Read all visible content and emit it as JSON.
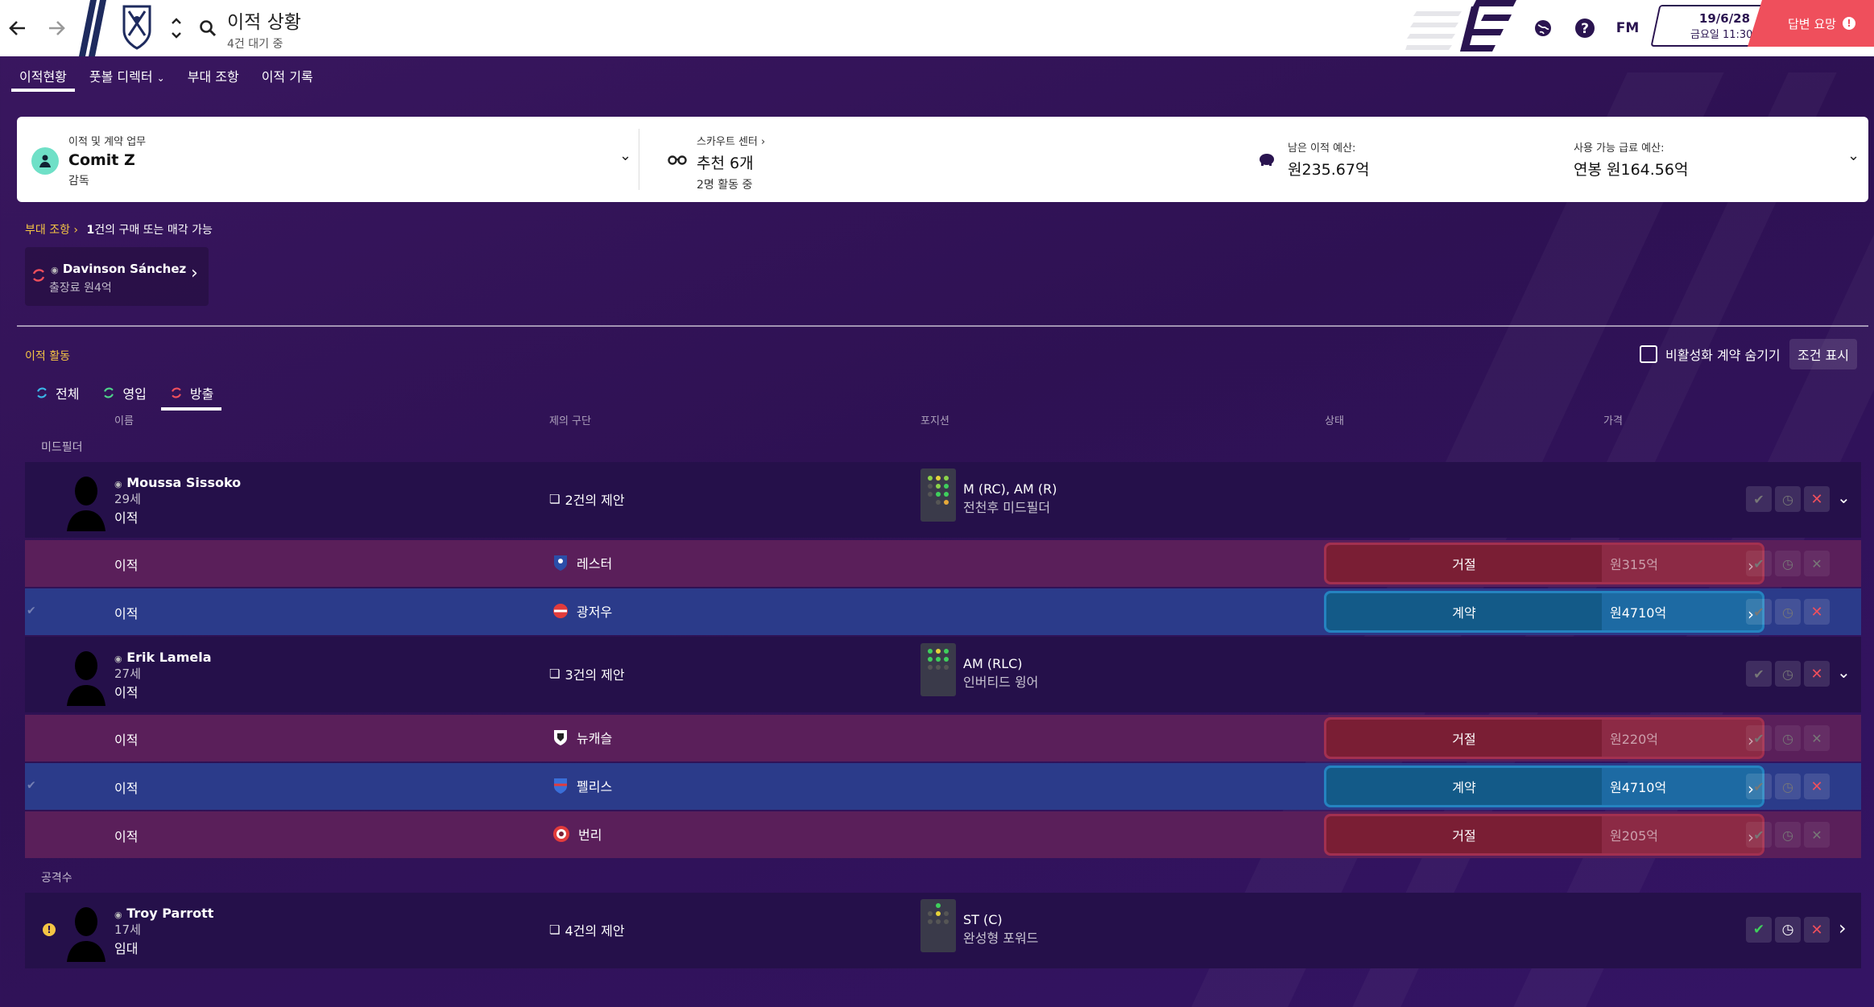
{
  "header": {
    "title": "이적 상황",
    "subtitle": "4건 대기 중",
    "fm_label": "FM",
    "date": "19/6/28",
    "day_time": "금요일 11:30",
    "reply_label": "답변 요망"
  },
  "subnav": {
    "tabs": [
      "이적현황",
      "풋볼 디렉터",
      "부대 조항",
      "이적 기록"
    ]
  },
  "info_card": {
    "transfer_label": "이적 및 계약 업무",
    "transfer_name": "Comit Z",
    "transfer_role": "감독",
    "scout_label": "스카우트 센터",
    "scout_main": "추천 6개",
    "scout_sub": "2명 활동 중",
    "budget_label": "남은 이적 예산:",
    "budget_value": "원235.67억",
    "wage_label": "사용 가능 급료 예산:",
    "wage_value": "연봉 원164.56억"
  },
  "squad_planner": {
    "link": "부대 조항",
    "summary_count": "1",
    "summary_text": "건의 구매 또는 매각 가능",
    "player_name": "Davinson Sánchez",
    "player_detail": "출장료 원4억"
  },
  "activity": {
    "title": "이적 활동",
    "hide_label": "비활성화 계약 숨기기",
    "conditions_label": "조건 표시",
    "filters": [
      "전체",
      "영입",
      "방출"
    ],
    "columns": [
      "이름",
      "제의 구단",
      "포지션",
      "상태",
      "가격"
    ],
    "groups": [
      "미드필더",
      "공격수"
    ]
  },
  "players": [
    {
      "name": "Moussa Sissoko",
      "age": "29세",
      "type": "이적",
      "offers": "2건의 제안",
      "position": "M (RC), AM (R)",
      "role": "전천후 미드필더",
      "deals": [
        {
          "type": "이적",
          "club": "레스터",
          "status": "거절",
          "price": "원315억",
          "style": "red"
        },
        {
          "type": "이적",
          "club": "광저우",
          "status": "계약",
          "price": "원4710억",
          "style": "blue"
        }
      ]
    },
    {
      "name": "Erik Lamela",
      "age": "27세",
      "type": "이적",
      "offers": "3건의 제안",
      "position": "AM (RLC)",
      "role": "인버티드 윙어",
      "deals": [
        {
          "type": "이적",
          "club": "뉴캐슬",
          "status": "거절",
          "price": "원220억",
          "style": "red"
        },
        {
          "type": "이적",
          "club": "펠리스",
          "status": "계약",
          "price": "원4710억",
          "style": "blue"
        },
        {
          "type": "이적",
          "club": "번리",
          "status": "거절",
          "price": "원205억",
          "style": "red"
        }
      ]
    },
    {
      "name": "Troy Parrott",
      "age": "17세",
      "type": "임대",
      "offers": "4건의 제안",
      "position": "ST (C)",
      "role": "완성형 포워드",
      "deals": []
    }
  ]
}
